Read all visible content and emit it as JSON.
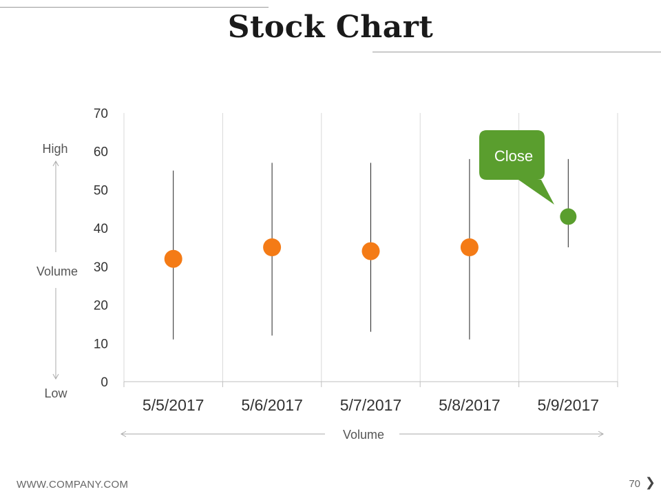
{
  "slide": {
    "title": "Stock Chart",
    "footer_url": "WWW.COMPANY.COM",
    "page_number": "70",
    "next_arrow": "❯"
  },
  "axis_annotations": {
    "high": "High",
    "low": "Low",
    "left_volume": "Volume",
    "bottom_volume": "Volume"
  },
  "callout": {
    "text": "Close",
    "color": "#5a9e2e"
  },
  "colors": {
    "point": "#f47b16",
    "highlight": "#5a9e2e",
    "whisker": "#222222",
    "grid": "#d9d9d9"
  },
  "chart_data": {
    "type": "scatter",
    "subtype": "stock-high-low-close",
    "categories": [
      "5/5/2017",
      "5/6/2017",
      "5/7/2017",
      "5/8/2017",
      "5/9/2017"
    ],
    "high": [
      55,
      57,
      57,
      58,
      58
    ],
    "low": [
      11,
      12,
      13,
      11,
      35
    ],
    "close": [
      32,
      35,
      34,
      35,
      43
    ],
    "ylim": [
      0,
      70
    ],
    "yticks": [
      0,
      10,
      20,
      30,
      40,
      50,
      60,
      70
    ],
    "grid": "vertical",
    "highlight_index": 4
  }
}
